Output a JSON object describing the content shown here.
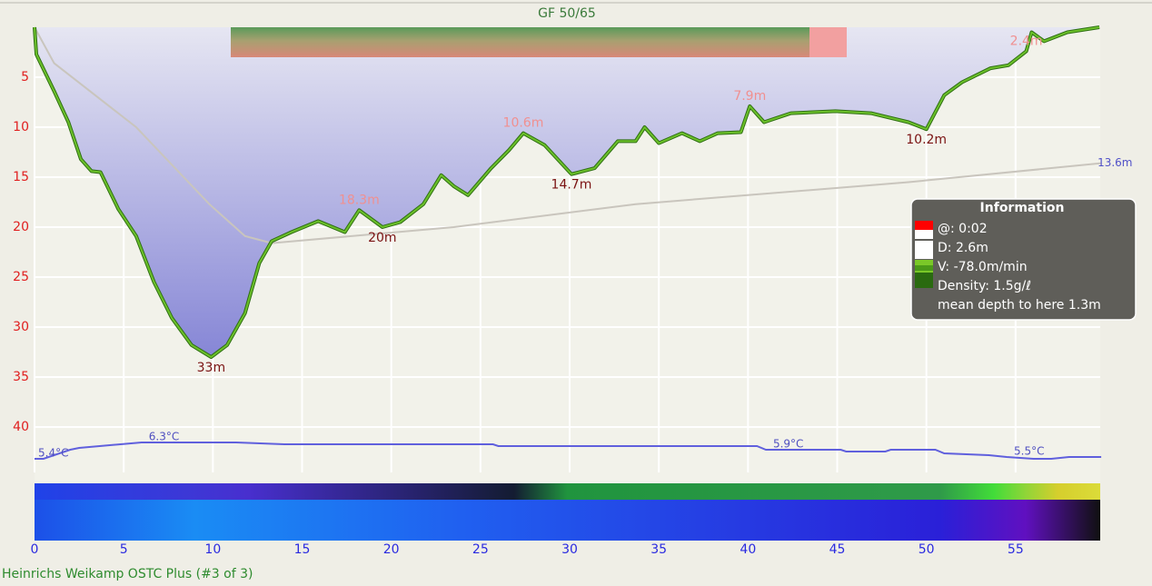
{
  "chart_data": {
    "type": "area",
    "title": "GF 50/65",
    "footer": "Heinrichs Weikamp OSTC Plus (#3 of 3)",
    "xlim": [
      0,
      60
    ],
    "ylim": [
      0,
      45
    ],
    "xticks": [
      0,
      5,
      10,
      15,
      20,
      25,
      30,
      35,
      40,
      45,
      50,
      55
    ],
    "yticks": [
      5,
      10,
      15,
      20,
      25,
      30,
      35,
      40
    ],
    "grid": true,
    "profile": {
      "color": "#6cc12a",
      "x": [
        0,
        0.1,
        1.1,
        1.9,
        2.6,
        3.2,
        3.7,
        4.7,
        5.7,
        6.7,
        7.7,
        8.8,
        9.9,
        10.8,
        11.8,
        12.6,
        13.3,
        14.4,
        15.9,
        17.4,
        18.2,
        19.5,
        20.5,
        21.8,
        22.8,
        23.5,
        24.3,
        25.6,
        26.6,
        27.4,
        28.6,
        30.1,
        31.4,
        32.7,
        33.7,
        34.2,
        35,
        36.3,
        37.3,
        38.3,
        39.6,
        40.1,
        40.9,
        42.4,
        44.9,
        46.9,
        49,
        50,
        51,
        52,
        53.6,
        54.6,
        55.6,
        55.9,
        56.6,
        57.9,
        59.7
      ],
      "values": [
        0,
        2.7,
        6.4,
        9.5,
        13.2,
        14.4,
        14.5,
        18.2,
        20.9,
        25.5,
        29.1,
        31.8,
        33,
        31.8,
        28.6,
        23.6,
        21.4,
        20.5,
        19.4,
        20.5,
        18.3,
        20,
        19.5,
        17.7,
        14.8,
        15.9,
        16.8,
        14.1,
        12.3,
        10.6,
        11.8,
        14.7,
        14.1,
        11.4,
        11.4,
        10,
        11.6,
        10.6,
        11.4,
        10.6,
        10.5,
        7.9,
        9.5,
        8.6,
        8.4,
        8.6,
        9.5,
        10.2,
        6.8,
        5.5,
        4.1,
        3.8,
        2.4,
        0.5,
        1.4,
        0.5,
        0
      ],
      "value_labels": [
        null,
        null,
        null,
        null,
        null,
        null,
        null,
        null,
        null,
        null,
        null,
        null,
        "33m",
        null,
        null,
        null,
        null,
        null,
        null,
        null,
        "18.3m",
        "20m",
        null,
        null,
        null,
        null,
        null,
        null,
        null,
        "10.6m",
        null,
        "14.7m",
        null,
        null,
        null,
        null,
        null,
        null,
        null,
        null,
        null,
        "7.9m",
        null,
        null,
        null,
        null,
        null,
        "10.2m",
        null,
        null,
        null,
        null,
        "2.4m",
        null,
        null,
        null,
        null
      ]
    },
    "mean_depth": {
      "color": "#c9c5bd",
      "x": [
        0,
        1.1,
        5.7,
        9.8,
        11.8,
        13.3,
        23.5,
        33.7,
        49,
        59.8
      ],
      "values": [
        0,
        3.6,
        10,
        17.7,
        20.9,
        21.6,
        20,
        17.7,
        15.5,
        13.6
      ],
      "value_labels": [
        null,
        null,
        null,
        null,
        null,
        null,
        null,
        null,
        null,
        "13.6m"
      ]
    },
    "temperature": {
      "color": "#6060dd",
      "y2lim": [
        4.4,
        7.9
      ],
      "x": [
        0,
        0.5,
        2,
        2.5,
        6,
        11.3,
        14,
        25.7,
        26,
        40.5,
        41,
        45.2,
        45.5,
        47.7,
        48,
        50.5,
        51,
        53.5,
        54.5,
        56,
        57,
        58,
        59.8
      ],
      "values": [
        5.4,
        5.4,
        5.9,
        6.0,
        6.3,
        6.3,
        6.2,
        6.2,
        6.1,
        6.1,
        5.9,
        5.9,
        5.8,
        5.8,
        5.9,
        5.9,
        5.7,
        5.6,
        5.5,
        5.4,
        5.4,
        5.5,
        5.5
      ],
      "value_labels": [
        "5.4°C",
        null,
        null,
        null,
        "6.3°C",
        null,
        null,
        null,
        null,
        null,
        "5.9°C",
        null,
        null,
        null,
        null,
        null,
        null,
        null,
        "5.5°C",
        null,
        null,
        null,
        null
      ]
    },
    "info_box": {
      "title": "Information",
      "lines": [
        "@: 0:02",
        "D: 2.6m",
        "V: -78.0m/min",
        "Density: 1.5g/ℓ",
        "mean depth to here 1.3m"
      ]
    }
  }
}
